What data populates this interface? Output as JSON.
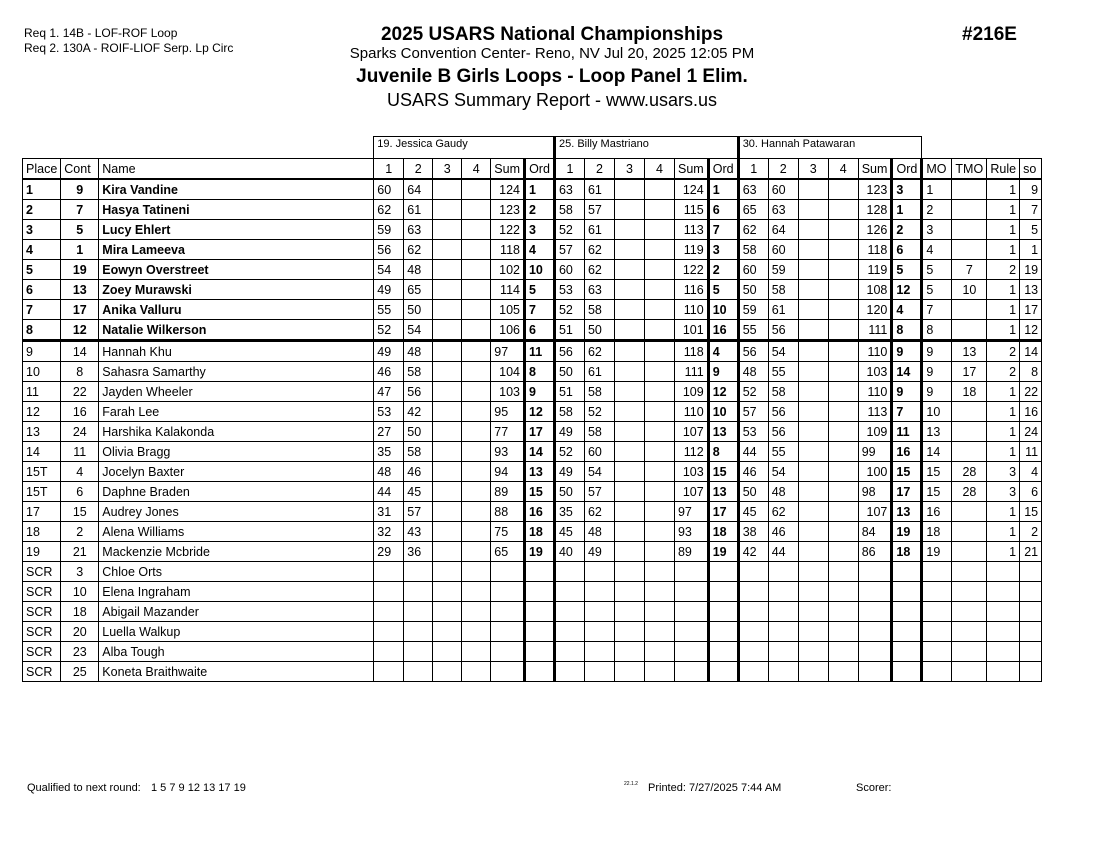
{
  "header": {
    "requirements": [
      "Req  1.  14B - LOF-ROF Loop",
      "Req  2.  130A - ROIF-LIOF Serp. Lp Circ"
    ],
    "title": "2025 USARS National Championships",
    "venue": "Sparks Convention Center- Reno, NV  Jul 20, 2025  12:05 PM",
    "event": "Juvenile B Girls Loops - Loop Panel 1 Elim.",
    "report": "USARS Summary Report - www.usars.us",
    "event_number": "#216E"
  },
  "judges": [
    "19.  Jessica Gaudy",
    "25.  Billy Mastriano",
    "30.  Hannah Patawaran"
  ],
  "columns": {
    "place": "Place",
    "cont": "Cont",
    "name": "Name",
    "judge_cols": [
      "1",
      "2",
      "3",
      "4",
      "Sum",
      "Ord"
    ],
    "mo": "MO",
    "tmo": "TMO",
    "rule": "Rule",
    "so": "so"
  },
  "rows": [
    {
      "place": "1",
      "cont": "9",
      "name": "Kira Vandine",
      "j": [
        [
          "60",
          "64",
          "124",
          "1"
        ],
        [
          "63",
          "61",
          "124",
          "1"
        ],
        [
          "63",
          "60",
          "123",
          "3"
        ]
      ],
      "mo": "1",
      "tmo": "",
      "rule": "1",
      "so": "9",
      "qualified": true
    },
    {
      "place": "2",
      "cont": "7",
      "name": "Hasya Tatineni",
      "j": [
        [
          "62",
          "61",
          "123",
          "2"
        ],
        [
          "58",
          "57",
          "115",
          "6"
        ],
        [
          "65",
          "63",
          "128",
          "1"
        ]
      ],
      "mo": "2",
      "tmo": "",
      "rule": "1",
      "so": "7",
      "qualified": true
    },
    {
      "place": "3",
      "cont": "5",
      "name": "Lucy Ehlert",
      "j": [
        [
          "59",
          "63",
          "122",
          "3"
        ],
        [
          "52",
          "61",
          "113",
          "7"
        ],
        [
          "62",
          "64",
          "126",
          "2"
        ]
      ],
      "mo": "3",
      "tmo": "",
      "rule": "1",
      "so": "5",
      "qualified": true
    },
    {
      "place": "4",
      "cont": "1",
      "name": "Mira Lameeva",
      "j": [
        [
          "56",
          "62",
          "118",
          "4"
        ],
        [
          "57",
          "62",
          "119",
          "3"
        ],
        [
          "58",
          "60",
          "118",
          "6"
        ]
      ],
      "mo": "4",
      "tmo": "",
      "rule": "1",
      "so": "1",
      "qualified": true
    },
    {
      "place": "5",
      "cont": "19",
      "name": "Eowyn Overstreet",
      "j": [
        [
          "54",
          "48",
          "102",
          "10"
        ],
        [
          "60",
          "62",
          "122",
          "2"
        ],
        [
          "60",
          "59",
          "119",
          "5"
        ]
      ],
      "mo": "5",
      "tmo": "7",
      "rule": "2",
      "so": "19",
      "qualified": true
    },
    {
      "place": "6",
      "cont": "13",
      "name": "Zoey Murawski",
      "j": [
        [
          "49",
          "65",
          "114",
          "5"
        ],
        [
          "53",
          "63",
          "116",
          "5"
        ],
        [
          "50",
          "58",
          "108",
          "12"
        ]
      ],
      "mo": "5",
      "tmo": "10",
      "rule": "1",
      "so": "13",
      "qualified": true
    },
    {
      "place": "7",
      "cont": "17",
      "name": "Anika Valluru",
      "j": [
        [
          "55",
          "50",
          "105",
          "7"
        ],
        [
          "52",
          "58",
          "110",
          "10"
        ],
        [
          "59",
          "61",
          "120",
          "4"
        ]
      ],
      "mo": "7",
      "tmo": "",
      "rule": "1",
      "so": "17",
      "qualified": true
    },
    {
      "place": "8",
      "cont": "12",
      "name": "Natalie Wilkerson",
      "j": [
        [
          "52",
          "54",
          "106",
          "6"
        ],
        [
          "51",
          "50",
          "101",
          "16"
        ],
        [
          "55",
          "56",
          "111",
          "8"
        ]
      ],
      "mo": "8",
      "tmo": "",
      "rule": "1",
      "so": "12",
      "qualified": true
    },
    {
      "place": "9",
      "cont": "14",
      "name": "Hannah Khu",
      "j": [
        [
          "49",
          "48",
          "97",
          "11"
        ],
        [
          "56",
          "62",
          "118",
          "4"
        ],
        [
          "56",
          "54",
          "110",
          "9"
        ]
      ],
      "mo": "9",
      "tmo": "13",
      "rule": "2",
      "so": "14"
    },
    {
      "place": "10",
      "cont": "8",
      "name": "Sahasra Samarthy",
      "j": [
        [
          "46",
          "58",
          "104",
          "8"
        ],
        [
          "50",
          "61",
          "111",
          "9"
        ],
        [
          "48",
          "55",
          "103",
          "14"
        ]
      ],
      "mo": "9",
      "tmo": "17",
      "rule": "2",
      "so": "8"
    },
    {
      "place": "11",
      "cont": "22",
      "name": "Jayden Wheeler",
      "j": [
        [
          "47",
          "56",
          "103",
          "9"
        ],
        [
          "51",
          "58",
          "109",
          "12"
        ],
        [
          "52",
          "58",
          "110",
          "9"
        ]
      ],
      "mo": "9",
      "tmo": "18",
      "rule": "1",
      "so": "22"
    },
    {
      "place": "12",
      "cont": "16",
      "name": "Farah Lee",
      "j": [
        [
          "53",
          "42",
          "95",
          "12"
        ],
        [
          "58",
          "52",
          "110",
          "10"
        ],
        [
          "57",
          "56",
          "113",
          "7"
        ]
      ],
      "mo": "10",
      "tmo": "",
      "rule": "1",
      "so": "16"
    },
    {
      "place": "13",
      "cont": "24",
      "name": "Harshika Kalakonda",
      "j": [
        [
          "27",
          "50",
          "77",
          "17"
        ],
        [
          "49",
          "58",
          "107",
          "13"
        ],
        [
          "53",
          "56",
          "109",
          "11"
        ]
      ],
      "mo": "13",
      "tmo": "",
      "rule": "1",
      "so": "24"
    },
    {
      "place": "14",
      "cont": "11",
      "name": "Olivia Bragg",
      "j": [
        [
          "35",
          "58",
          "93",
          "14"
        ],
        [
          "52",
          "60",
          "112",
          "8"
        ],
        [
          "44",
          "55",
          "99",
          "16"
        ]
      ],
      "mo": "14",
      "tmo": "",
      "rule": "1",
      "so": "11"
    },
    {
      "place": "15T",
      "cont": "4",
      "name": "Jocelyn Baxter",
      "j": [
        [
          "48",
          "46",
          "94",
          "13"
        ],
        [
          "49",
          "54",
          "103",
          "15"
        ],
        [
          "46",
          "54",
          "100",
          "15"
        ]
      ],
      "mo": "15",
      "tmo": "28",
      "rule": "3",
      "so": "4"
    },
    {
      "place": "15T",
      "cont": "6",
      "name": "Daphne Braden",
      "j": [
        [
          "44",
          "45",
          "89",
          "15"
        ],
        [
          "50",
          "57",
          "107",
          "13"
        ],
        [
          "50",
          "48",
          "98",
          "17"
        ]
      ],
      "mo": "15",
      "tmo": "28",
      "rule": "3",
      "so": "6"
    },
    {
      "place": "17",
      "cont": "15",
      "name": "Audrey Jones",
      "j": [
        [
          "31",
          "57",
          "88",
          "16"
        ],
        [
          "35",
          "62",
          "97",
          "17"
        ],
        [
          "45",
          "62",
          "107",
          "13"
        ]
      ],
      "mo": "16",
      "tmo": "",
      "rule": "1",
      "so": "15"
    },
    {
      "place": "18",
      "cont": "2",
      "name": "Alena Williams",
      "j": [
        [
          "32",
          "43",
          "75",
          "18"
        ],
        [
          "45",
          "48",
          "93",
          "18"
        ],
        [
          "38",
          "46",
          "84",
          "19"
        ]
      ],
      "mo": "18",
      "tmo": "",
      "rule": "1",
      "so": "2"
    },
    {
      "place": "19",
      "cont": "21",
      "name": "Mackenzie Mcbride",
      "j": [
        [
          "29",
          "36",
          "65",
          "19"
        ],
        [
          "40",
          "49",
          "89",
          "19"
        ],
        [
          "42",
          "44",
          "86",
          "18"
        ]
      ],
      "mo": "19",
      "tmo": "",
      "rule": "1",
      "so": "21"
    },
    {
      "place": "SCR",
      "cont": "3",
      "name": "Chloe Orts"
    },
    {
      "place": "SCR",
      "cont": "10",
      "name": "Elena Ingraham"
    },
    {
      "place": "SCR",
      "cont": "18",
      "name": "Abigail Mazander"
    },
    {
      "place": "SCR",
      "cont": "20",
      "name": "Luella Walkup"
    },
    {
      "place": "SCR",
      "cont": "23",
      "name": "Alba Tough"
    },
    {
      "place": "SCR",
      "cont": "25",
      "name": "Koneta Braithwaite"
    }
  ],
  "footer": {
    "qualified_label": "Qualified to next round:",
    "qualified_list": "1 5 7 9 12 13 17 19",
    "version": "22.1.2",
    "printed": "Printed:  7/27/2025  7:44 AM",
    "scorer": "Scorer:"
  }
}
